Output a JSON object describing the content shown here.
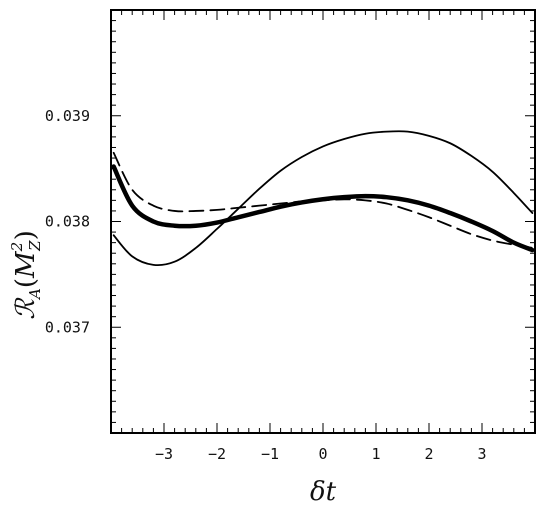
{
  "chart_data": {
    "type": "line",
    "xlabel": "δt",
    "ylabel": {
      "base": "ℛ",
      "base_sub": "A",
      "open": "(",
      "arg": "M",
      "arg_sup": "2",
      "arg_sub": "Z",
      "close": ")"
    },
    "xlim": [
      -4,
      4
    ],
    "ylim": [
      0.036,
      0.04
    ],
    "x_ticks": [
      -3,
      -2,
      -1,
      0,
      1,
      2,
      3
    ],
    "x_tick_labels": [
      "−3",
      "−2",
      "−1",
      "0",
      "1",
      "2",
      "3"
    ],
    "y_ticks": [
      0.037,
      0.038,
      0.039
    ],
    "y_tick_labels": [
      "0.037",
      "0.038",
      "0.039"
    ],
    "grid": false,
    "series": [
      {
        "style": "thin-solid",
        "x": [
          -3.95,
          -3.6,
          -3.2,
          -2.8,
          -2.4,
          -2.0,
          -1.6,
          -1.2,
          -0.8,
          -0.4,
          0.0,
          0.4,
          0.8,
          1.2,
          1.6,
          2.0,
          2.4,
          2.8,
          3.2,
          3.6,
          3.95
        ],
        "y": [
          0.03787,
          0.03767,
          0.03759,
          0.03762,
          0.03775,
          0.03793,
          0.03812,
          0.03831,
          0.03848,
          0.03861,
          0.03871,
          0.03878,
          0.03883,
          0.03885,
          0.03885,
          0.03881,
          0.03874,
          0.03862,
          0.03847,
          0.03827,
          0.03808
        ]
      },
      {
        "style": "thick-solid",
        "x": [
          -3.95,
          -3.6,
          -3.2,
          -2.8,
          -2.4,
          -2.0,
          -1.6,
          -1.2,
          -0.8,
          -0.4,
          0.0,
          0.4,
          0.8,
          1.2,
          1.6,
          2.0,
          2.4,
          2.8,
          3.2,
          3.6,
          3.95
        ],
        "y": [
          0.03852,
          0.03815,
          0.038,
          0.03796,
          0.03796,
          0.03799,
          0.03804,
          0.03809,
          0.03814,
          0.03818,
          0.03821,
          0.03823,
          0.03824,
          0.03823,
          0.0382,
          0.03815,
          0.03808,
          0.038,
          0.03791,
          0.0378,
          0.03773
        ]
      },
      {
        "style": "dashed",
        "x": [
          -3.95,
          -3.6,
          -3.2,
          -2.8,
          -2.4,
          -2.0,
          -1.6,
          -1.2,
          -0.8,
          -0.4,
          0.0,
          0.4,
          0.8,
          1.2,
          1.6,
          2.0,
          2.4,
          2.8,
          3.2,
          3.6,
          3.95
        ],
        "y": [
          0.03865,
          0.0383,
          0.03815,
          0.0381,
          0.0381,
          0.03811,
          0.03813,
          0.03815,
          0.03817,
          0.03819,
          0.0382,
          0.03821,
          0.0382,
          0.03817,
          0.03811,
          0.03804,
          0.03796,
          0.03788,
          0.03782,
          0.03778,
          0.03775
        ]
      }
    ]
  }
}
